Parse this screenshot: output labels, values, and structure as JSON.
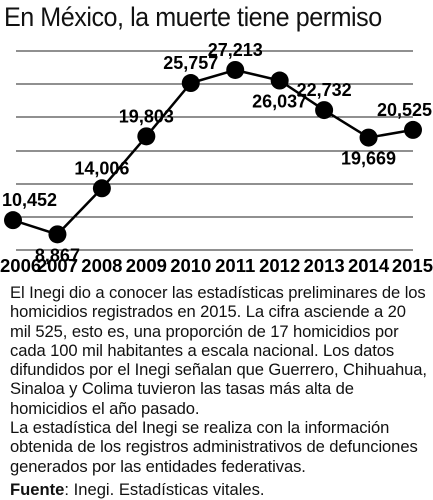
{
  "title": "En México, la muerte tiene permiso",
  "chart_data": {
    "type": "line",
    "title": "En México, la muerte tiene permiso",
    "xlabel": "",
    "ylabel": "",
    "x": [
      "2006",
      "2007",
      "2008",
      "2009",
      "2010",
      "2011",
      "2012",
      "2013",
      "2014",
      "2015"
    ],
    "series": [
      {
        "values": [
          10452,
          8867,
          14006,
          19803,
          25757,
          27213,
          26037,
          22732,
          19669,
          20525
        ],
        "labels": [
          "10,452",
          "8,867",
          "14,006",
          "19,803",
          "25,757",
          "27,213",
          "26,037",
          "22,732",
          "19,669",
          "20,525"
        ]
      }
    ],
    "ylim": [
      5000,
      30000
    ],
    "grid": true,
    "line_color": "#000000",
    "legend": "none"
  },
  "description": [
    "El Inegi dio a conocer las estadísticas preliminares de los homicidios registrados en 2015. La cifra asciende a 20 mil 525, esto es, una proporción de 17 homicidios por cada 100 mil habitantes a escala nacional. Los datos difundidos por el Inegi señalan que Guerrero, Chihuahua, Sinaloa y Colima tuvieron las tasas más alta de homicidios el año pasado.",
    "La estadística del Inegi se realiza con la información obtenida de los registros administrativos de defunciones generados por las entidades federativas."
  ],
  "source": {
    "label": "Fuente",
    "text": ": Inegi. Estadísticas vitales."
  }
}
